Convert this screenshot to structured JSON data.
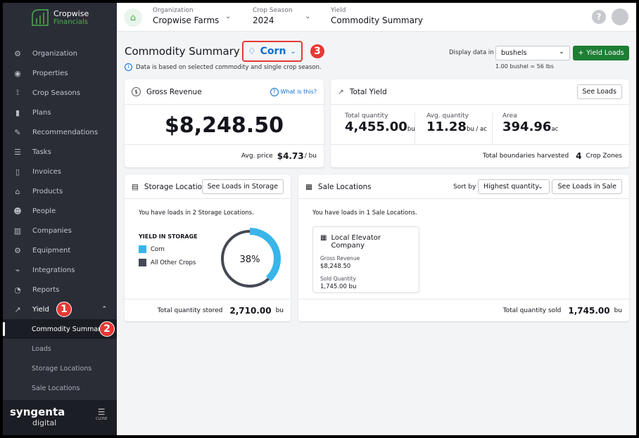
{
  "brand": {
    "name": "Cropwise",
    "sub": "Financials",
    "footer": "syngenta",
    "footer_sub": "digital",
    "close": "CLOSE"
  },
  "sidebar": {
    "items": [
      {
        "label": "Organization",
        "icon": "gear-icon"
      },
      {
        "label": "Properties",
        "icon": "globe-icon"
      },
      {
        "label": "Crop Seasons",
        "icon": "sprout-icon"
      },
      {
        "label": "Plans",
        "icon": "clipboard-icon"
      },
      {
        "label": "Recommendations",
        "icon": "edit-icon"
      },
      {
        "label": "Tasks",
        "icon": "list-icon"
      },
      {
        "label": "Invoices",
        "icon": "invoice-icon"
      },
      {
        "label": "Products",
        "icon": "store-icon"
      },
      {
        "label": "People",
        "icon": "people-icon"
      },
      {
        "label": "Companies",
        "icon": "building-icon"
      },
      {
        "label": "Equipment",
        "icon": "tractor-icon"
      },
      {
        "label": "Integrations",
        "icon": "plug-icon"
      },
      {
        "label": "Reports",
        "icon": "pie-icon"
      }
    ],
    "yield": {
      "label": "Yield",
      "badge": "1",
      "sub": [
        {
          "label": "Commodity Summary",
          "badge": "2"
        },
        {
          "label": "Loads"
        },
        {
          "label": "Storage Locations"
        },
        {
          "label": "Sale Locations"
        }
      ]
    }
  },
  "header": {
    "org_label": "Organization",
    "org": "Cropwise Farms",
    "season_label": "Crop Season",
    "season": "2024",
    "section_label": "Yield",
    "section": "Commodity Summary",
    "help": "?"
  },
  "page": {
    "title": "Commodity Summary",
    "commodity": "Corn",
    "badge": "3",
    "info": "Data is based on selected commodity and single crop season.",
    "display_label": "Display data in",
    "unit": "bushels",
    "conversion": "1.00 bushel = 56 lbs",
    "add_button": "Yield Loads"
  },
  "revenue": {
    "title": "Gross Revenue",
    "help": "What is this?",
    "amount": "$8,248.50",
    "avg_label": "Avg. price",
    "avg": "$4.73",
    "avg_unit": "/ bu"
  },
  "yield": {
    "title": "Total Yield",
    "button": "See Loads",
    "total_label": "Total quantity",
    "total": "4,455.00",
    "total_unit": "bu",
    "avg_label": "Avg. quantity",
    "avg": "11.28",
    "avg_unit": "bu / ac",
    "area_label": "Area",
    "area": "394.96",
    "area_unit": "ac",
    "footer_label": "Total boundaries harvested",
    "zones": "4",
    "zones_unit": "Crop Zones"
  },
  "storage": {
    "title": "Storage Locations",
    "button": "See Loads in Storage",
    "summary": "You have loads in 2 Storage Locations.",
    "legend_title": "YIELD IN STORAGE",
    "legend": [
      {
        "label": "Corn",
        "color": "#39b5ea"
      },
      {
        "label": "All Other Crops",
        "color": "#454955"
      }
    ],
    "percent": 38,
    "percent_label": "38%",
    "footer_label": "Total quantity stored",
    "footer_value": "2,710.00",
    "footer_unit": "bu"
  },
  "sale": {
    "title": "Sale Locations",
    "sort_label": "Sort by",
    "sort": "Highest quantity",
    "button": "See Loads in Sale",
    "summary": "You have loads in 1 Sale Locations.",
    "location": {
      "name": "Local Elevator Company",
      "rev_label": "Gross Revenue",
      "rev": "$8,248.50",
      "qty_label": "Sold Quantity",
      "qty": "1,745.00 bu"
    },
    "footer_label": "Total quantity sold",
    "footer_value": "1,745.00",
    "footer_unit": "bu"
  }
}
